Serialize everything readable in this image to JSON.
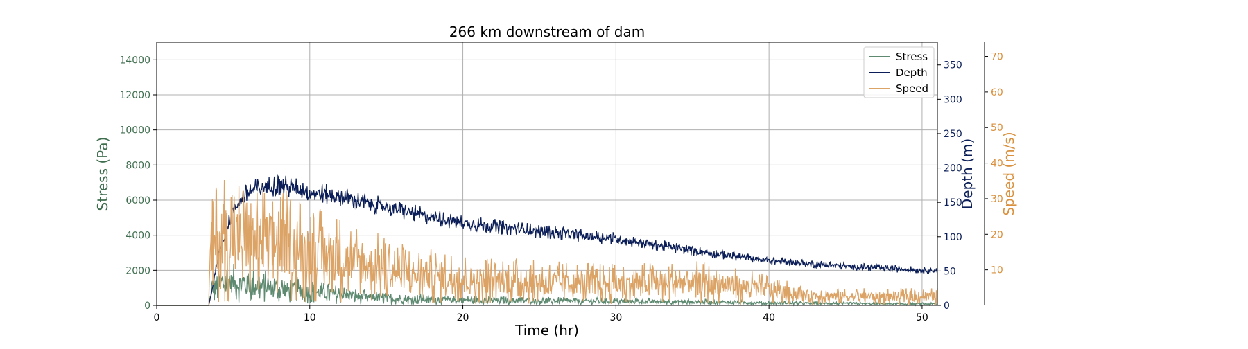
{
  "chart_data": {
    "type": "line",
    "title": "266 km downstream of dam",
    "xlabel": "Time (hr)",
    "xlim": [
      0,
      51
    ],
    "xticks": [
      0,
      10,
      20,
      30,
      40,
      50
    ],
    "grid": true,
    "legend_position": "top-right",
    "axes": [
      {
        "id": "stress",
        "side": "left",
        "label": "Stress (Pa)",
        "color": "#3f6e4f",
        "ylim": [
          0,
          15000
        ],
        "ticks": [
          0,
          2000,
          4000,
          6000,
          8000,
          10000,
          12000,
          14000
        ]
      },
      {
        "id": "depth",
        "side": "right",
        "label": "Depth (m)",
        "color": "#0b1e57",
        "ylim": [
          0,
          383
        ],
        "ticks": [
          0,
          50,
          100,
          150,
          200,
          250,
          300,
          350
        ]
      },
      {
        "id": "speed",
        "side": "right-offset",
        "label": "Speed (m/s)",
        "color": "#d9913f",
        "ylim": [
          0,
          74
        ],
        "ticks": [
          10,
          20,
          30,
          40,
          50,
          60,
          70
        ]
      }
    ],
    "series": [
      {
        "name": "Stress",
        "axis": "stress",
        "color": "#5d8a70",
        "noise": 0.55,
        "x": [
          0,
          3.4,
          3.6,
          4.5,
          6,
          8,
          10,
          12,
          14,
          16,
          20,
          25,
          30,
          35,
          40,
          45,
          51
        ],
        "y": [
          0,
          0,
          900,
          1300,
          1200,
          950,
          800,
          600,
          450,
          350,
          300,
          260,
          230,
          200,
          140,
          100,
          80
        ]
      },
      {
        "name": "Depth",
        "axis": "depth",
        "color": "#0b1e57",
        "noise": 0.06,
        "x": [
          0,
          3.4,
          3.6,
          4,
          5,
          6,
          7,
          8,
          9,
          10,
          12,
          14,
          16,
          18,
          20,
          25,
          30,
          35,
          40,
          45,
          51
        ],
        "y": [
          0,
          0,
          20,
          70,
          140,
          165,
          172,
          175,
          170,
          165,
          158,
          148,
          138,
          128,
          120,
          108,
          97,
          80,
          65,
          57,
          50
        ]
      },
      {
        "name": "Speed",
        "axis": "speed",
        "color": "#dca366",
        "noise": 0.6,
        "x": [
          0,
          3.4,
          3.5,
          4,
          5,
          6,
          8,
          10,
          12,
          14,
          16,
          20,
          25,
          30,
          35,
          40,
          42,
          45,
          51
        ],
        "y": [
          0,
          0,
          14,
          19,
          19,
          18,
          17,
          15,
          13,
          11,
          9,
          7.5,
          6.5,
          6,
          6.5,
          4.5,
          3,
          2.5,
          2.5
        ]
      }
    ]
  }
}
